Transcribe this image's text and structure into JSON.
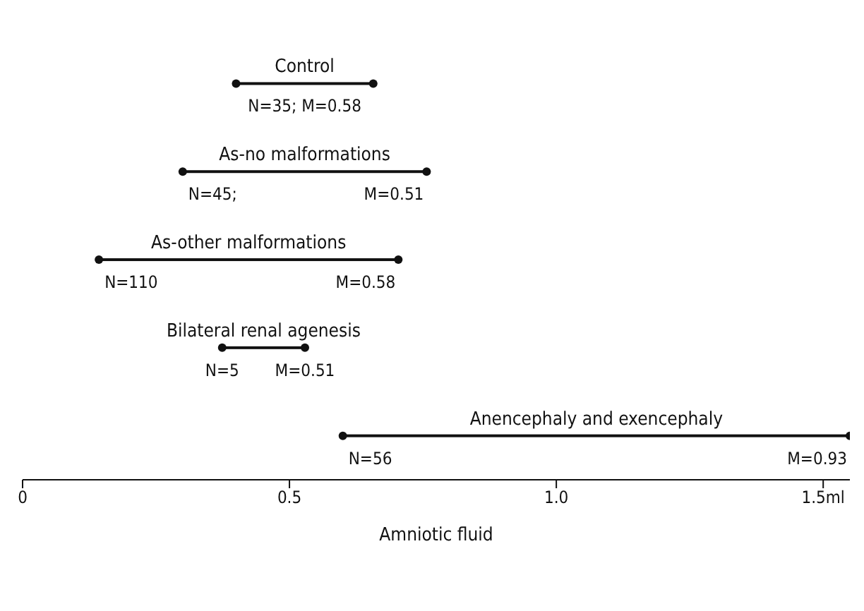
{
  "chart_data": {
    "type": "bar",
    "orientation": "horizontal",
    "xlabel": "Amniotic fluid",
    "categories": [
      "Control",
      "As-no malformations",
      "As-other malformations",
      "Bilateral renal agenesis",
      "Anencephaly and exencephaly"
    ],
    "base": [
      0.4,
      0.3,
      0.143,
      0.374,
      0.6
    ],
    "values": [
      0.257,
      0.457,
      0.561,
      0.155,
      0.95
    ],
    "color": "#111111",
    "marker": "circle",
    "tick_labels": "x",
    "xlim": [
      0,
      1.55
    ],
    "xticks": [
      0,
      0.5,
      {
        "value": 1.0,
        "label": "1.0"
      },
      {
        "value": 1.5,
        "label": "1.5ml"
      }
    ],
    "annotations": [
      "N=35; M=0.58",
      "N=45;                    M=0.51",
      "N=110                         M=0.58",
      "N=5       M=0.51",
      "N=56                                             M=0.93"
    ]
  }
}
